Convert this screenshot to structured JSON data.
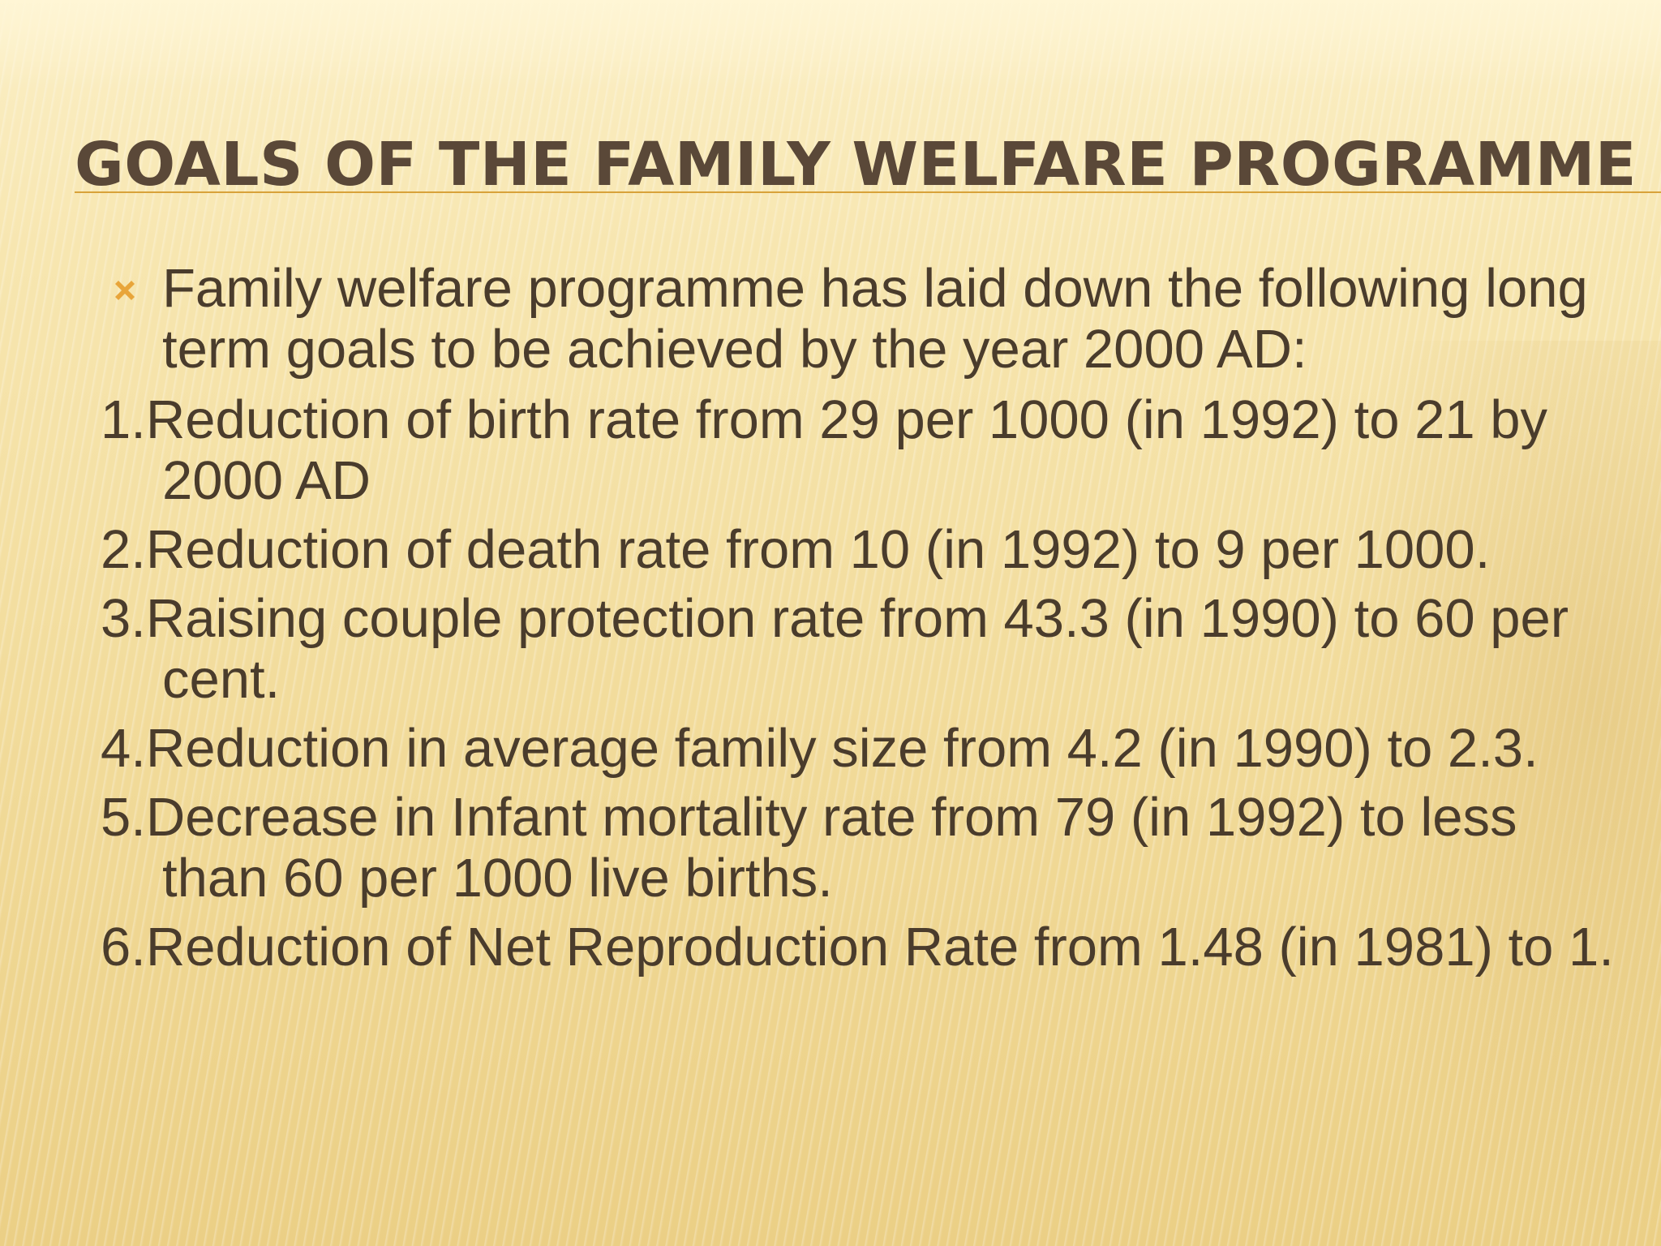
{
  "slide": {
    "title": "GOALS OF THE FAMILY WELFARE PROGRAMME",
    "bullet_text": "Family welfare programme has laid down the following long term goals to be achieved by the year 2000 AD:",
    "bullet_icon": "x-mark-icon",
    "accent_color": "#d8a23a",
    "goals": [
      "1.Reduction of birth rate from 29 per 1000 (in 1992) to 21 by 2000 AD",
      "2.Reduction of death rate from 10 (in 1992) to 9 per 1000.",
      "3.Raising couple protection rate from 43.3 (in 1990) to 60 per cent.",
      "4.Reduction in average family size from 4.2 (in 1990) to 2.3.",
      "5.Decrease in Infant mortality rate from 79 (in 1992) to less than 60 per 1000 live births.",
      "6.Reduction of Net Reproduction Rate from 1.48 (in 1981) to 1."
    ]
  }
}
